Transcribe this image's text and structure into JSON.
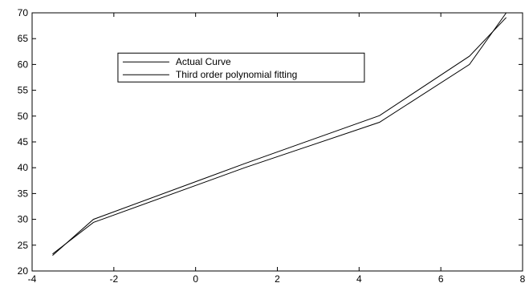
{
  "chart_data": {
    "type": "line",
    "title": "",
    "xlabel": "",
    "ylabel": "",
    "xlim": [
      -4,
      8
    ],
    "ylim": [
      20,
      70
    ],
    "x_ticks": [
      -4,
      -2,
      0,
      2,
      4,
      6,
      8
    ],
    "y_ticks": [
      20,
      25,
      30,
      35,
      40,
      45,
      50,
      55,
      60,
      65,
      70
    ],
    "x_tick_labels": [
      "-4",
      "-2",
      "0",
      "2",
      "4",
      "6",
      "8"
    ],
    "y_tick_labels": [
      "20",
      "25",
      "30",
      "35",
      "40",
      "45",
      "50",
      "55",
      "60",
      "65",
      "70"
    ],
    "grid": false,
    "legend_position": "upper-left-inside",
    "series": [
      {
        "name": "Actual Curve",
        "color": "#000000",
        "x": [
          -3.5,
          -2.5,
          1.2,
          4.5,
          6.7,
          7.6
        ],
        "y": [
          23.0,
          30.0,
          40.8,
          50.1,
          61.6,
          69.1
        ]
      },
      {
        "name": "Third order polynomial fitting",
        "color": "#000000",
        "x": [
          -3.5,
          -2.5,
          1.2,
          4.5,
          6.7,
          7.6
        ],
        "y": [
          23.3,
          29.4,
          40.0,
          48.8,
          60.0,
          70.0
        ]
      }
    ]
  }
}
